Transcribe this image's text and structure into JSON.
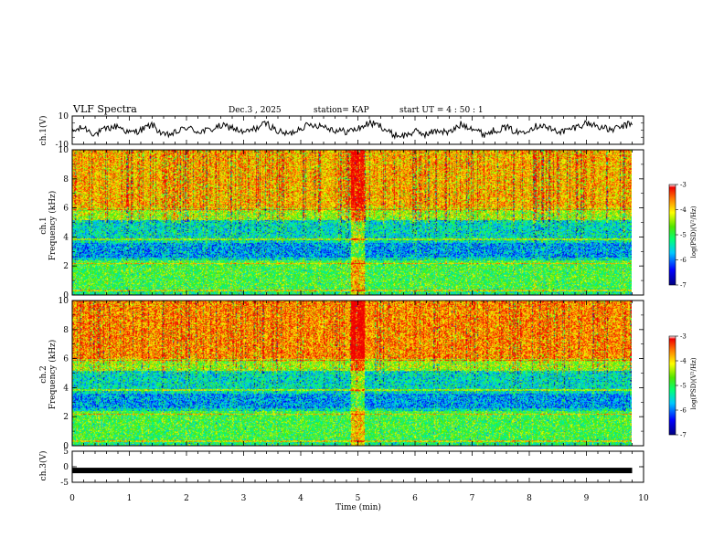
{
  "header": {
    "title": "VLF Spectra",
    "date": "Dec.3  , 2025",
    "station": "station= KAP",
    "start_ut": "start  UT =   4 : 50 : 1"
  },
  "chart_data": [
    {
      "type": "line",
      "name": "ch1-waveform",
      "ylabel": "ch.1(V)",
      "ylim": [
        -10,
        10
      ],
      "yticks": [
        "10",
        "-10"
      ],
      "xlim": [
        0,
        10
      ],
      "x": [
        0,
        0.2,
        0.4,
        0.6,
        0.8,
        1.0,
        1.2,
        1.4,
        1.6,
        1.8,
        2.0,
        2.2,
        2.4,
        2.6,
        2.8,
        3.0,
        3.2,
        3.4,
        3.6,
        3.8,
        4.0,
        4.2,
        4.4,
        4.6,
        4.8,
        5.0,
        5.2,
        5.4,
        5.6,
        5.8,
        6.0,
        6.2,
        6.4,
        6.6,
        6.8,
        7.0,
        7.2,
        7.4,
        7.6,
        7.8,
        8.0,
        8.2,
        8.4,
        8.6,
        8.8,
        9.0,
        9.2,
        9.4,
        9.6,
        9.8
      ],
      "values": [
        -1,
        2,
        -3,
        1,
        3,
        -2,
        0,
        4,
        -4,
        -2,
        2,
        -1,
        0,
        3,
        2,
        -2,
        1,
        5,
        -1,
        -3,
        2,
        4,
        3,
        0,
        -1,
        1,
        5,
        3,
        -3,
        -4,
        -1,
        -3,
        0,
        -2,
        4,
        2,
        -3,
        0,
        2,
        -2,
        1,
        4,
        0,
        -1,
        2,
        5,
        3,
        0,
        2,
        5
      ]
    },
    {
      "type": "heatmap",
      "name": "ch1-spectrogram",
      "ylabel": "ch.1\nFrequency (kHz)",
      "ylim": [
        0,
        10
      ],
      "yticks": [
        "0",
        "2",
        "4",
        "6",
        "8",
        "10"
      ],
      "xlim": [
        0,
        10
      ],
      "colorbar_label": "log(PSD)(V²/Hz)",
      "colorbar_range": [
        -7,
        -3
      ],
      "colorbar_ticks": [
        "-3",
        "-4",
        "-5",
        "-6",
        "-7"
      ]
    },
    {
      "type": "heatmap",
      "name": "ch2-spectrogram",
      "ylabel": "ch.2\nFrequency (kHz)",
      "ylim": [
        0,
        10
      ],
      "yticks": [
        "0",
        "2",
        "4",
        "6",
        "8",
        "10"
      ],
      "xlim": [
        0,
        10
      ],
      "colorbar_label": "log(PSD)(V²/Hz)",
      "colorbar_range": [
        -7,
        -3
      ],
      "colorbar_ticks": [
        "-3",
        "-4",
        "-5",
        "-6",
        "-7"
      ]
    },
    {
      "type": "line",
      "name": "ch3-waveform",
      "ylabel": "ch.3(V)",
      "ylim": [
        -5,
        5
      ],
      "yticks": [
        "5",
        "0",
        "-5"
      ],
      "xlim": [
        0,
        10
      ],
      "x": [
        0,
        9.8
      ],
      "values": [
        0,
        0
      ]
    }
  ],
  "xaxis": {
    "label": "Time  (min)",
    "ticks": [
      "0",
      "1",
      "2",
      "3",
      "4",
      "5",
      "6",
      "7",
      "8",
      "9",
      "10"
    ]
  },
  "colors": {
    "frame": "#000000",
    "background": "#ffffff"
  }
}
